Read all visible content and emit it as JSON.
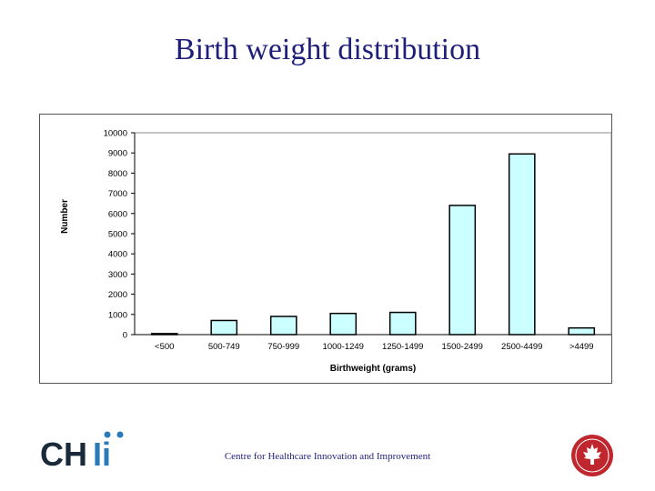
{
  "slide": {
    "title": "Birth weight distribution",
    "footer": "Centre for Healthcare Innovation and Improvement"
  },
  "logo": {
    "text_left": "CH",
    "text_right": "Ii",
    "dark_color": "#1a2a3a",
    "accent_color": "#2a7ab8",
    "seal_color": "#c0262e"
  },
  "chart_data": {
    "type": "bar",
    "categories": [
      "<500",
      "500-749",
      "750-999",
      "1000-1249",
      "1250-1499",
      "1500-2499",
      "2500-4499",
      ">4499"
    ],
    "values": [
      50,
      700,
      900,
      1050,
      1100,
      6400,
      8950,
      330
    ],
    "xlabel": "Birthweight (grams)",
    "ylabel": "Number",
    "ylim": [
      0,
      10000
    ],
    "yticks": [
      0,
      1000,
      2000,
      3000,
      4000,
      5000,
      6000,
      7000,
      8000,
      9000,
      10000
    ],
    "bar_color": "#ccffff",
    "bar_edge_color": "#000000",
    "grid": false,
    "legend": "none"
  }
}
